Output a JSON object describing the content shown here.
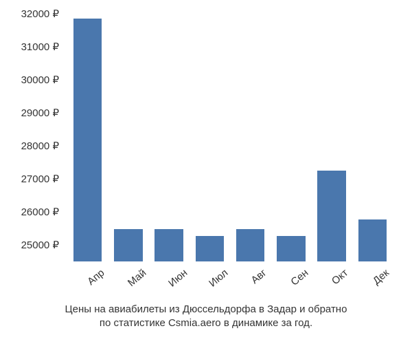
{
  "chart": {
    "type": "bar",
    "background_color": "#ffffff",
    "bar_color": "#4a77ad",
    "text_color": "#333333",
    "font_family": "Arial, Helvetica, sans-serif",
    "y_axis": {
      "min": 24500,
      "max": 32000,
      "tick_step": 1000,
      "ticks": [
        {
          "value": 25000,
          "label": "25000 ₽"
        },
        {
          "value": 26000,
          "label": "26000 ₽"
        },
        {
          "value": 27000,
          "label": "27000 ₽"
        },
        {
          "value": 28000,
          "label": "28000 ₽"
        },
        {
          "value": 29000,
          "label": "29000 ₽"
        },
        {
          "value": 30000,
          "label": "30000 ₽"
        },
        {
          "value": 31000,
          "label": "31000 ₽"
        },
        {
          "value": 32000,
          "label": "32000 ₽"
        }
      ],
      "label_fontsize": 15
    },
    "x_axis": {
      "label_fontsize": 15,
      "label_rotation_deg": -40
    },
    "bars": [
      {
        "category": "Апр",
        "value": 31850
      },
      {
        "category": "Май",
        "value": 25480
      },
      {
        "category": "Июн",
        "value": 25480
      },
      {
        "category": "Июл",
        "value": 25280
      },
      {
        "category": "Авг",
        "value": 25480
      },
      {
        "category": "Сен",
        "value": 25280
      },
      {
        "category": "Окт",
        "value": 27250
      },
      {
        "category": "Дек",
        "value": 25780
      }
    ],
    "bar_width_ratio": 0.7,
    "caption": {
      "line1": "Цены на авиабилеты из Дюссельдорфа в Задар и обратно",
      "line2": "по статистике Csmia.aero в динамике за год.",
      "fontsize": 15
    }
  }
}
